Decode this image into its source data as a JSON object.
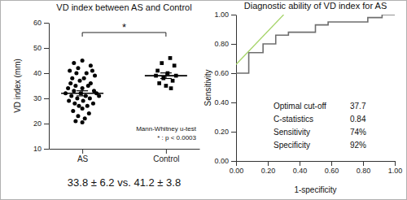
{
  "chart_data": [
    {
      "type": "scatter",
      "title": "VD index between AS and Control",
      "ylabel": "VD index (mm)",
      "xlim": [
        0.6,
        2.4
      ],
      "xticks": [
        {
          "value": 1,
          "label": "AS"
        },
        {
          "value": 2,
          "label": "Control"
        }
      ],
      "ylim": [
        10,
        60
      ],
      "yticks": [
        10,
        20,
        30,
        40,
        50,
        60
      ],
      "grid": false,
      "series": [
        {
          "marker": "circle",
          "color": "#000000",
          "x": [
            1.0,
            0.9,
            1.1,
            0.95,
            0.85,
            1.12,
            0.93,
            1.05,
            1.15,
            0.88,
            1.02,
            0.97,
            0.86,
            1.1,
            0.92,
            1.07,
            0.83,
            1.0,
            0.9,
            1.14,
            0.8,
            0.98,
            1.17,
            0.87,
            1.04,
            1.2,
            0.94,
            1.09,
            0.84,
            1.01,
            0.91,
            1.13,
            0.96,
            1.06,
            1.0,
            0.89,
            1.08,
            0.95,
            1.03,
            0.92,
            1.0
          ],
          "values": [
            45,
            44,
            43,
            42,
            41,
            41,
            40,
            40,
            39,
            38,
            38,
            37,
            36,
            36,
            35,
            35,
            34,
            34,
            33,
            33,
            32,
            32,
            32,
            31,
            31,
            31,
            30,
            30,
            29,
            29,
            28,
            28,
            27,
            27,
            26,
            25,
            24,
            23,
            22,
            21,
            20.5
          ]
        },
        {
          "marker": "square",
          "color": "#000000",
          "x": [
            2.05,
            1.95,
            2.1,
            1.9,
            2.02,
            1.88,
            2.12,
            1.97,
            2.08,
            1.92,
            2.0,
            2.06
          ],
          "values": [
            46,
            44,
            43,
            41,
            40,
            39,
            39,
            38,
            37,
            36,
            35,
            34
          ]
        }
      ],
      "summary": {
        "color": "#000000",
        "x": [
          1,
          2
        ],
        "values": [
          32,
          39
        ],
        "errors": [
          1,
          1.1
        ]
      },
      "annotations": [
        "*",
        "Mann-Whitney u-test",
        "* : p < 0.0003"
      ],
      "caption": "33.8 ± 6.2 vs. 41.2 ± 3.8"
    },
    {
      "type": "line",
      "title": "Diagnostic ability of VD index for AS",
      "xlabel": "1-specificity",
      "ylabel": "Sensitivity",
      "xlim": [
        0,
        1
      ],
      "xticks": [
        {
          "value": 0,
          "label": "0.00"
        },
        {
          "value": 0.2,
          "label": "0.20"
        },
        {
          "value": 0.4,
          "label": "0.40"
        },
        {
          "value": 0.6,
          "label": "0.60"
        },
        {
          "value": 0.8,
          "label": "0.80"
        },
        {
          "value": 1,
          "label": "1.00"
        }
      ],
      "ylim": [
        0,
        1
      ],
      "yticks": [
        {
          "value": 0,
          "label": "0.00"
        },
        {
          "value": 0.2,
          "label": "0.20"
        },
        {
          "value": 0.4,
          "label": "0.40"
        },
        {
          "value": 0.6,
          "label": "0.60"
        },
        {
          "value": 0.8,
          "label": "0.80"
        },
        {
          "value": 1,
          "label": "1.00"
        }
      ],
      "grid": false,
      "series": [
        {
          "color": "#6e6e6e",
          "line_style": "solid",
          "x": [
            0,
            0.08,
            0.08,
            0.17,
            0.17,
            0.25,
            0.25,
            0.33,
            0.33,
            0.5,
            0.5,
            0.58,
            0.58,
            0.83,
            0.83,
            0.92,
            0.92,
            1.0
          ],
          "values": [
            0.6,
            0.6,
            0.74,
            0.74,
            0.8,
            0.8,
            0.86,
            0.86,
            0.88,
            0.88,
            0.93,
            0.93,
            0.95,
            0.95,
            0.98,
            0.98,
            1.0,
            1.0
          ]
        },
        {
          "color": "#a6d46a",
          "line_style": "solid",
          "x": [
            0,
            0.3
          ],
          "values": [
            0.66,
            1.0
          ]
        }
      ],
      "stats": [
        {
          "label": "Optimal cut-off",
          "value": 37.7
        },
        {
          "label": "C-statistics",
          "value": 0.84
        },
        {
          "label": "Sensitivity",
          "value": 74,
          "value_label": "74%"
        },
        {
          "label": "Specificity",
          "value": 92,
          "value_label": "92%"
        }
      ]
    }
  ]
}
